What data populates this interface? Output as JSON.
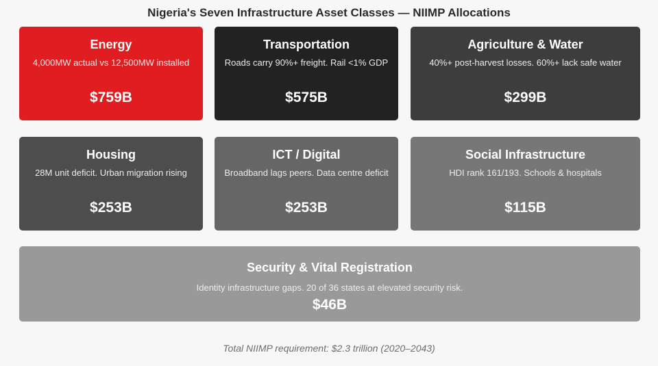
{
  "title": "Nigeria's Seven Infrastructure Asset Classes — NIIMP Allocations",
  "asset_classes": [
    {
      "name": "Energy",
      "description": "4,000MW actual vs 12,500MW installed",
      "amount": "$759B",
      "color": "#e01e22"
    },
    {
      "name": "Transportation",
      "description": "Roads carry 90%+ freight. Rail <1% GDP",
      "amount": "$575B",
      "color": "#222222"
    },
    {
      "name": "Agriculture & Water",
      "description": "40%+ post-harvest losses. 60%+ lack safe water",
      "amount": "$299B",
      "color": "#3d3d3d"
    },
    {
      "name": "Housing",
      "description": "28M unit deficit. Urban migration rising",
      "amount": "$253B",
      "color": "#4d4d4d"
    },
    {
      "name": "ICT / Digital",
      "description": "Broadband lags peers. Data centre deficit",
      "amount": "$253B",
      "color": "#666666"
    },
    {
      "name": "Social Infrastructure",
      "description": "HDI rank 161/193. Schools & hospitals",
      "amount": "$115B",
      "color": "#777777"
    },
    {
      "name": "Security & Vital Registration",
      "description": "Identity infrastructure gaps. 20 of 36 states at elevated security risk.",
      "amount": "$46B",
      "color": "#999999"
    }
  ],
  "footer": "Total NIIMP requirement: $2.3 trillion (2020–2043)"
}
